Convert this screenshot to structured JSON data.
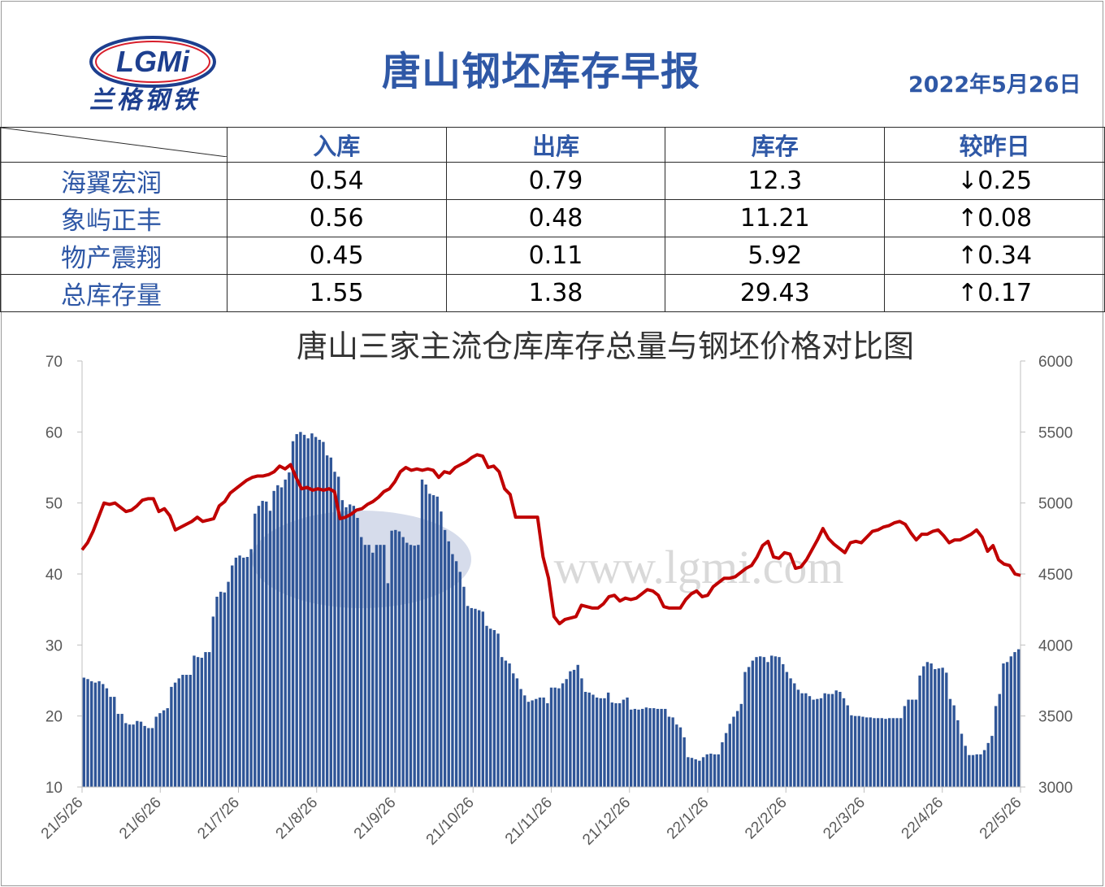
{
  "header": {
    "logo_text": "LGMi",
    "logo_cn": "兰格钢铁",
    "title": "唐山钢坯库存早报",
    "date": "2022年5月26日"
  },
  "table": {
    "columns": [
      "入库",
      "出库",
      "库存",
      "较昨日"
    ],
    "rows": [
      {
        "name": "海翼宏润",
        "in": "0.54",
        "out": "0.79",
        "stock": "12.3",
        "change": "↓0.25",
        "dir": "down"
      },
      {
        "name": "象屿正丰",
        "in": "0.56",
        "out": "0.48",
        "stock": "11.21",
        "change": "↑0.08",
        "dir": "up"
      },
      {
        "name": "物产震翔",
        "in": "0.45",
        "out": "0.11",
        "stock": "5.92",
        "change": "↑0.34",
        "dir": "up"
      },
      {
        "name": "总库存量",
        "in": "1.55",
        "out": "1.38",
        "stock": "29.43",
        "change": "↑0.17",
        "dir": "up"
      }
    ]
  },
  "watermark": "www.lgmi.com",
  "colors": {
    "accent": "#2f58a6",
    "bar": "#2f5597",
    "line": "#c00000",
    "up": "#e0121a",
    "down": "#4ca82f"
  },
  "chart_data": {
    "type": "bar+line",
    "title": "唐山三家主流仓库库存总量与钢坯价格对比图",
    "x_ticks": [
      "21/5/26",
      "21/6/26",
      "21/7/26",
      "21/8/26",
      "21/9/26",
      "21/10/26",
      "21/11/26",
      "21/12/26",
      "22/1/26",
      "22/2/26",
      "22/3/26",
      "22/4/26",
      "22/5/26"
    ],
    "y_left": {
      "ticks": [
        10,
        20,
        30,
        40,
        50,
        60,
        70
      ],
      "ylim": [
        10,
        70
      ]
    },
    "y_right": {
      "ticks": [
        3000,
        3500,
        4000,
        4500,
        5000,
        5500,
        6000
      ],
      "ylim": [
        3000,
        6000
      ]
    },
    "series": [
      {
        "axis": "left",
        "kind": "bar",
        "values": [
          25.4,
          25.2,
          24.9,
          24.7,
          24.9,
          24.5,
          23.9,
          22.7,
          22.7,
          20.3,
          20.3,
          19.0,
          18.8,
          18.8,
          19.3,
          19.2,
          18.6,
          18.3,
          18.3,
          19.9,
          20.4,
          20.8,
          21.1,
          24.1,
          24.7,
          25.3,
          25.8,
          25.8,
          25.8,
          28.5,
          28.3,
          28.2,
          29.0,
          29.0,
          34.0,
          36.8,
          37.5,
          37.4,
          38.9,
          41.2,
          42.3,
          42.6,
          42.3,
          42.4,
          43.5,
          48.5,
          49.6,
          50.3,
          50.2,
          48.9,
          51.7,
          52.5,
          52.2,
          53.3,
          54.3,
          58.7,
          59.7,
          60.0,
          59.6,
          59.1,
          59.8,
          59.3,
          58.9,
          58.6,
          56.7,
          56.4,
          54.4,
          53.7,
          50.4,
          49.4,
          49.8,
          49.6,
          47.9,
          45.2,
          44.1,
          44.1,
          43.0,
          44.1,
          44.1,
          44.1,
          38.7,
          46.1,
          46.2,
          46.0,
          45.2,
          44.4,
          44.1,
          44.0,
          44.1,
          53.3,
          52.6,
          51.3,
          51.1,
          50.9,
          48.8,
          46.2,
          44.6,
          42.8,
          41.8,
          40.3,
          38.2,
          35.5,
          35.2,
          35.1,
          34.9,
          34.7,
          32.7,
          32.3,
          32.1,
          31.6,
          28.3,
          27.8,
          27.4,
          26.0,
          25.3,
          23.8,
          22.9,
          22.0,
          22.2,
          22.4,
          22.6,
          22.6,
          21.8,
          24.0,
          24.0,
          23.9,
          24.6,
          25.2,
          26.3,
          26.5,
          27.2,
          25.3,
          23.4,
          23.3,
          23.0,
          22.6,
          22.5,
          22.5,
          23.3,
          21.9,
          21.8,
          21.8,
          22.3,
          22.6,
          20.9,
          21.0,
          20.9,
          21.0,
          21.2,
          21.1,
          21.1,
          21.0,
          21.0,
          21.0,
          19.9,
          19.8,
          18.8,
          18.4,
          17.0,
          14.2,
          14.1,
          13.9,
          13.7,
          14.2,
          14.6,
          14.7,
          14.6,
          14.6,
          16.3,
          17.6,
          18.9,
          19.9,
          20.7,
          21.7,
          26.2,
          26.9,
          27.8,
          28.3,
          28.4,
          28.3,
          27.6,
          28.5,
          28.4,
          28.3,
          27.3,
          26.2,
          25.3,
          24.6,
          23.7,
          23.2,
          23.2,
          22.8,
          22.3,
          22.4,
          22.5,
          23.2,
          23.1,
          23.1,
          23.6,
          23.4,
          22.5,
          21.5,
          20.1,
          20.0,
          20.0,
          19.9,
          19.8,
          19.8,
          19.7,
          19.7,
          19.7,
          19.6,
          19.7,
          19.7,
          19.7,
          19.7,
          21.4,
          22.3,
          22.3,
          22.3,
          25.7,
          27.0,
          27.6,
          27.4,
          26.6,
          26.7,
          26.8,
          26.1,
          22.4,
          21.5,
          19.4,
          17.5,
          15.8,
          14.5,
          14.5,
          14.6,
          14.6,
          15.2,
          16.2,
          17.2,
          21.4,
          23.1,
          27.4,
          27.6,
          28.4,
          29.0,
          29.4
        ]
      },
      {
        "axis": "right",
        "kind": "line",
        "values": [
          4670,
          4720,
          4800,
          4900,
          5000,
          4990,
          5000,
          4970,
          4940,
          4950,
          4980,
          5020,
          5030,
          5030,
          4940,
          4960,
          4910,
          4810,
          4830,
          4850,
          4870,
          4900,
          4870,
          4880,
          4890,
          4980,
          5010,
          5070,
          5100,
          5130,
          5160,
          5180,
          5190,
          5190,
          5200,
          5220,
          5260,
          5240,
          5270,
          5180,
          5100,
          5110,
          5090,
          5100,
          5090,
          5100,
          5080,
          4890,
          4900,
          4920,
          4950,
          4960,
          4990,
          5010,
          5040,
          5080,
          5100,
          5150,
          5220,
          5250,
          5230,
          5240,
          5230,
          5240,
          5230,
          5180,
          5220,
          5210,
          5250,
          5270,
          5290,
          5320,
          5340,
          5330,
          5250,
          5260,
          5220,
          5100,
          5060,
          4900,
          4900,
          4900,
          4900,
          4900,
          4620,
          4470,
          4200,
          4150,
          4180,
          4190,
          4200,
          4280,
          4270,
          4260,
          4260,
          4290,
          4340,
          4350,
          4310,
          4330,
          4320,
          4330,
          4360,
          4390,
          4380,
          4350,
          4270,
          4260,
          4260,
          4260,
          4320,
          4360,
          4380,
          4340,
          4350,
          4410,
          4440,
          4470,
          4470,
          4480,
          4510,
          4540,
          4560,
          4620,
          4700,
          4730,
          4620,
          4610,
          4650,
          4640,
          4540,
          4550,
          4600,
          4670,
          4740,
          4820,
          4750,
          4710,
          4680,
          4650,
          4720,
          4730,
          4720,
          4760,
          4800,
          4810,
          4830,
          4840,
          4860,
          4870,
          4850,
          4790,
          4740,
          4780,
          4780,
          4800,
          4810,
          4770,
          4720,
          4740,
          4740,
          4760,
          4780,
          4810,
          4760,
          4660,
          4700,
          4600,
          4570,
          4560,
          4500,
          4490
        ]
      }
    ]
  }
}
